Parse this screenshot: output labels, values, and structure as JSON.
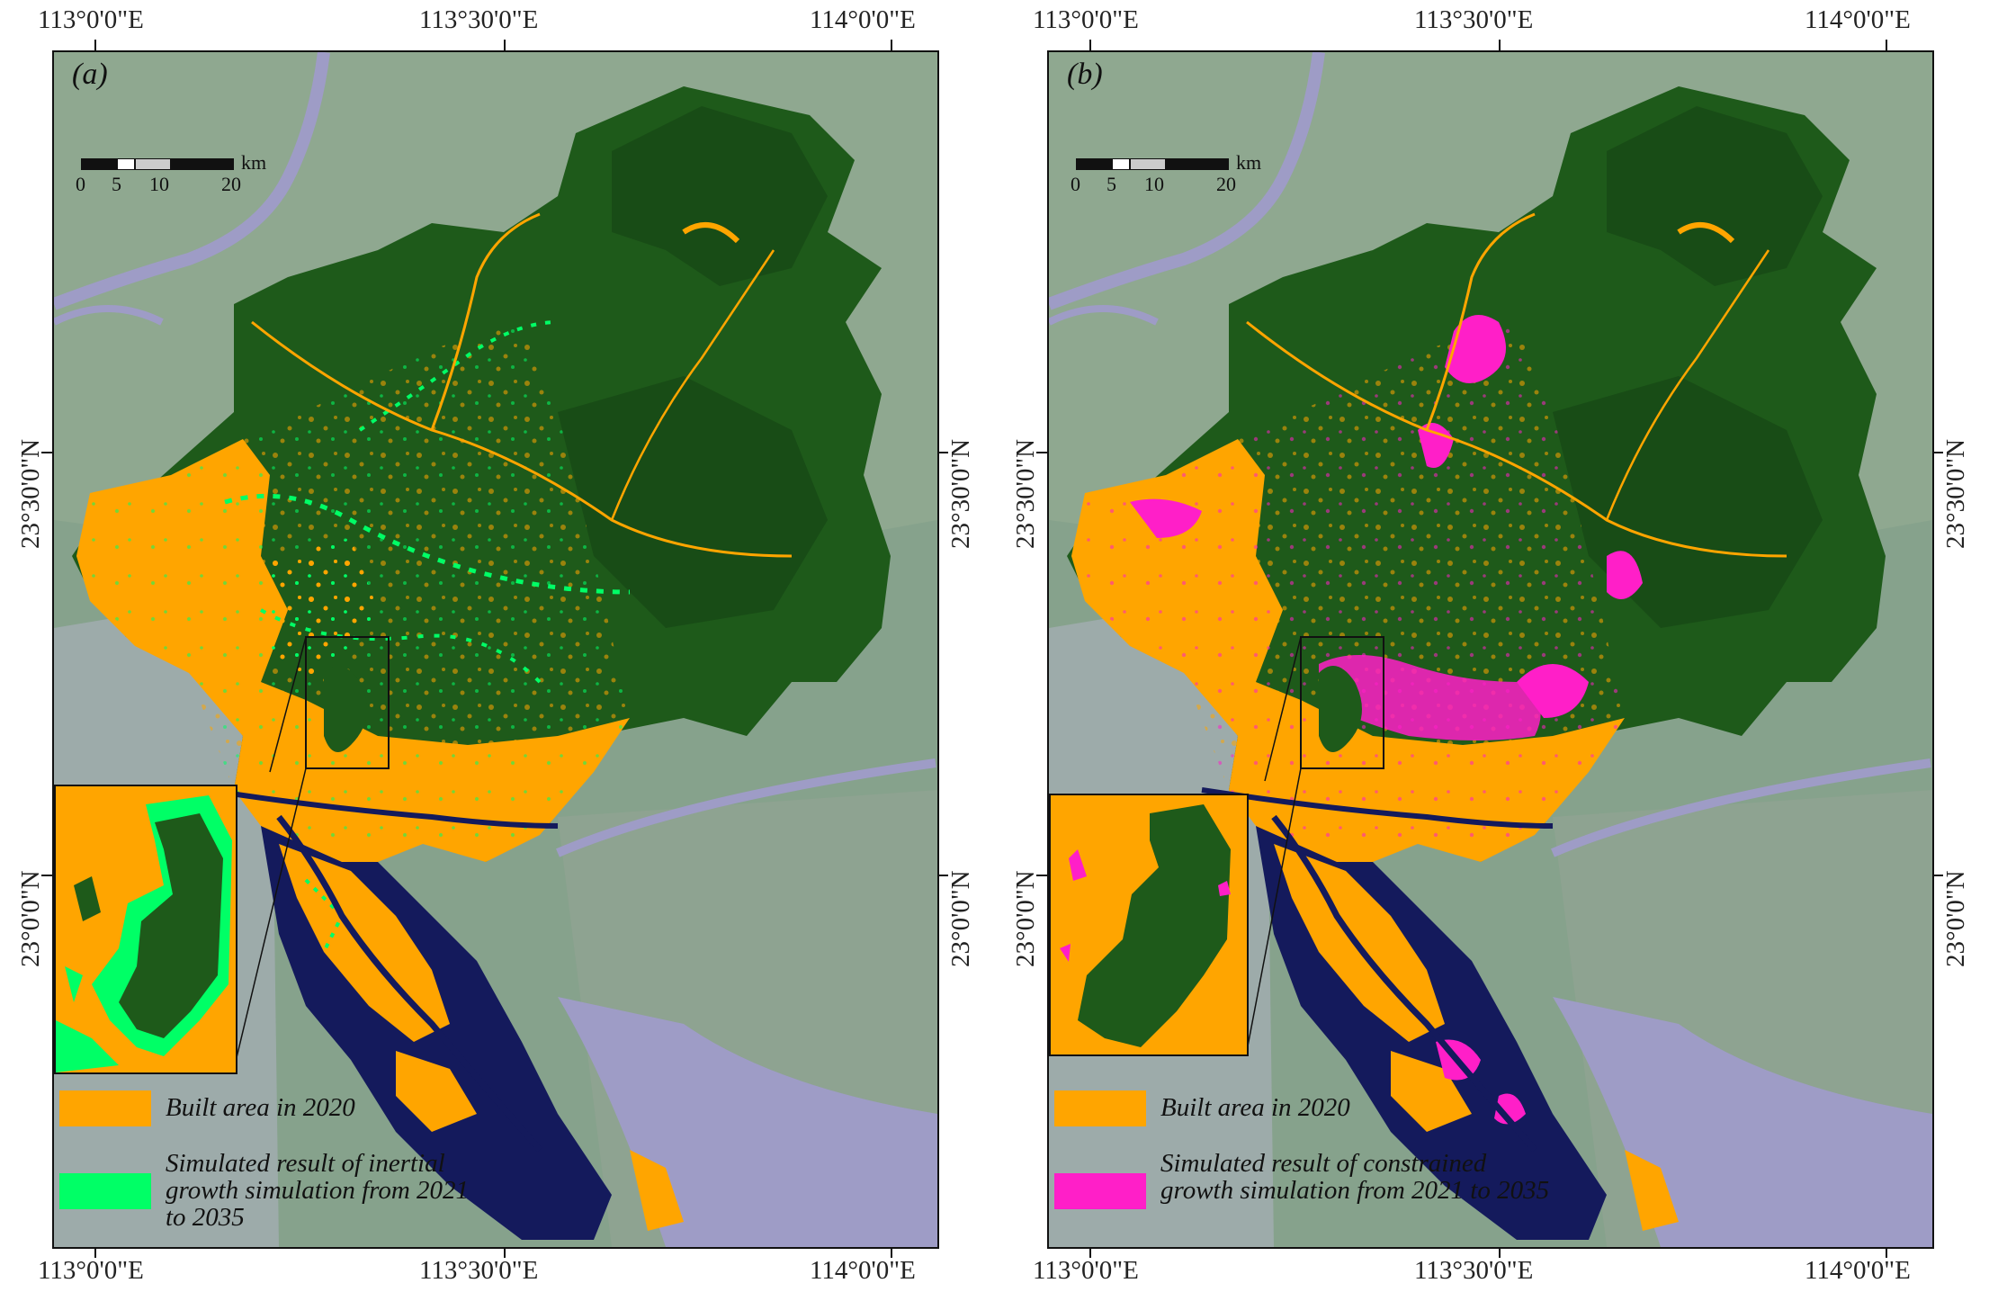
{
  "axes": {
    "top_labels": [
      "113°0'0\"E",
      "113°30'0\"E",
      "114°0'0\"E"
    ],
    "bottom_labels": [
      "113°0'0\"E",
      "113°30'0\"E",
      "114°0'0\"E"
    ],
    "left_labels": [
      "23°30'0\"N",
      "23°0'0\"N"
    ],
    "right_labels": [
      "23°30'0\"N",
      "23°0'0\"N"
    ]
  },
  "scalebar": {
    "unit": "km",
    "ticks": [
      "0",
      "5",
      "10",
      "20"
    ]
  },
  "colors": {
    "built_area": "#ffa500",
    "inertial_growth": "#00ff66",
    "constrained_growth": "#ff1fc8",
    "forest": "#1e5a1a",
    "water": "#141a5c",
    "background_imagery": "#7f9c86"
  },
  "panels": [
    {
      "label": "(a)",
      "legend": [
        {
          "color": "#ffa500",
          "text": "Built area in 2020"
        },
        {
          "color": "#00ff66",
          "text": "Simulated result of inertial growth simulation from 2021 to 2035"
        }
      ]
    },
    {
      "label": "(b)",
      "legend": [
        {
          "color": "#ffa500",
          "text": "Built area in 2020"
        },
        {
          "color": "#ff1fc8",
          "text": "Simulated result of constrained growth simulation from 2021 to 2035"
        }
      ]
    }
  ]
}
